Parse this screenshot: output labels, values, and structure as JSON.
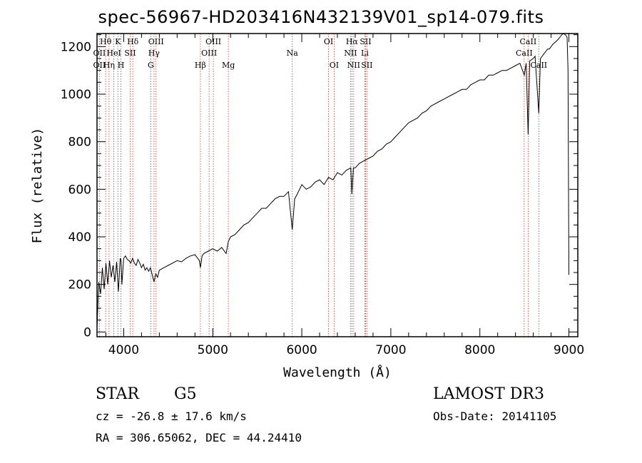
{
  "title": "spec-56967-HD203416N432139V01_sp14-079.fits",
  "chart_data": {
    "type": "line",
    "xlabel": "Wavelength (Å)",
    "ylabel": "Flux (relative)",
    "xlim": [
      3700,
      9100
    ],
    "ylim": [
      -20,
      1255
    ],
    "x_ticks": [
      4000,
      5000,
      6000,
      7000,
      8000,
      9000
    ],
    "y_ticks": [
      0,
      200,
      400,
      600,
      800,
      1000,
      1200
    ],
    "series": [
      {
        "name": "spectrum",
        "x": [
          3700,
          3720,
          3740,
          3760,
          3780,
          3800,
          3820,
          3840,
          3860,
          3880,
          3900,
          3920,
          3940,
          3960,
          3970,
          3980,
          4000,
          4020,
          4040,
          4060,
          4080,
          4100,
          4120,
          4140,
          4160,
          4180,
          4200,
          4220,
          4240,
          4260,
          4280,
          4300,
          4320,
          4340,
          4360,
          4380,
          4400,
          4450,
          4500,
          4550,
          4600,
          4650,
          4700,
          4750,
          4800,
          4850,
          4861,
          4880,
          4900,
          4950,
          5000,
          5050,
          5100,
          5150,
          5175,
          5200,
          5250,
          5300,
          5350,
          5400,
          5450,
          5500,
          5550,
          5600,
          5650,
          5700,
          5750,
          5800,
          5850,
          5893,
          5920,
          5950,
          6000,
          6050,
          6100,
          6150,
          6200,
          6250,
          6300,
          6350,
          6400,
          6450,
          6500,
          6550,
          6563,
          6580,
          6600,
          6650,
          6700,
          6750,
          6800,
          6850,
          6900,
          6950,
          7000,
          7050,
          7100,
          7150,
          7200,
          7250,
          7300,
          7350,
          7400,
          7450,
          7500,
          7550,
          7600,
          7650,
          7700,
          7750,
          7800,
          7850,
          7900,
          7950,
          8000,
          8050,
          8100,
          8150,
          8200,
          8250,
          8300,
          8350,
          8400,
          8450,
          8498,
          8520,
          8542,
          8560,
          8600,
          8620,
          8662,
          8680,
          8700,
          8720,
          8740,
          8760,
          8780,
          8800,
          8820,
          8850,
          8880,
          8900,
          8920,
          8940,
          8960,
          8980,
          8990,
          9000
        ],
        "values": [
          20,
          210,
          160,
          270,
          180,
          290,
          200,
          300,
          230,
          280,
          210,
          295,
          170,
          310,
          300,
          200,
          310,
          320,
          305,
          300,
          290,
          310,
          290,
          280,
          305,
          290,
          270,
          285,
          260,
          270,
          255,
          270,
          240,
          210,
          245,
          230,
          260,
          270,
          280,
          290,
          300,
          295,
          310,
          320,
          325,
          300,
          270,
          320,
          330,
          340,
          350,
          340,
          355,
          330,
          380,
          400,
          410,
          430,
          450,
          460,
          480,
          500,
          520,
          520,
          540,
          560,
          570,
          570,
          590,
          430,
          560,
          580,
          620,
          600,
          610,
          630,
          640,
          620,
          650,
          640,
          670,
          660,
          680,
          690,
          580,
          690,
          690,
          710,
          720,
          730,
          740,
          760,
          770,
          790,
          800,
          820,
          840,
          860,
          880,
          890,
          900,
          920,
          930,
          950,
          960,
          970,
          980,
          990,
          1000,
          1010,
          1020,
          1020,
          1040,
          1050,
          1060,
          1060,
          1080,
          1080,
          1090,
          1100,
          1100,
          1110,
          1120,
          1130,
          1080,
          1130,
          830,
          1140,
          1150,
          1160,
          920,
          1150,
          1160,
          1170,
          1180,
          1190,
          1190,
          1200,
          1210,
          1220,
          1230,
          1240,
          1250,
          1255,
          1250,
          1240,
          1100,
          240
        ]
      }
    ],
    "annotations": [
      {
        "label": "Hθ",
        "wavelength": 3797,
        "row": 0
      },
      {
        "label": "OII",
        "wavelength": 3727,
        "row": 1
      },
      {
        "label": "OII",
        "wavelength": 3727,
        "row": 2
      },
      {
        "label": "Hη",
        "wavelength": 3835,
        "row": 2
      },
      {
        "label": "K",
        "wavelength": 3934,
        "row": 0
      },
      {
        "label": "HeI",
        "wavelength": 3889,
        "row": 1
      },
      {
        "label": "H",
        "wavelength": 3969,
        "row": 2
      },
      {
        "label": "SII",
        "wavelength": 4072,
        "row": 1
      },
      {
        "label": "Hδ",
        "wavelength": 4102,
        "row": 0
      },
      {
        "label": "OIII",
        "wavelength": 4363,
        "row": 0
      },
      {
        "label": "Hγ",
        "wavelength": 4340,
        "row": 1
      },
      {
        "label": "G",
        "wavelength": 4304,
        "row": 2
      },
      {
        "label": "Hβ",
        "wavelength": 4861,
        "row": 2
      },
      {
        "label": "OIII",
        "wavelength": 5007,
        "row": 0
      },
      {
        "label": "OIII",
        "wavelength": 4959,
        "row": 1
      },
      {
        "label": "Mg",
        "wavelength": 5175,
        "row": 2
      },
      {
        "label": "Na",
        "wavelength": 5893,
        "row": 1
      },
      {
        "label": "OI",
        "wavelength": 6300,
        "row": 0
      },
      {
        "label": "OI",
        "wavelength": 6363,
        "row": 2
      },
      {
        "label": "Hα",
        "wavelength": 6563,
        "row": 0
      },
      {
        "label": "SII",
        "wavelength": 6716,
        "row": 0
      },
      {
        "label": "NII",
        "wavelength": 6548,
        "row": 1
      },
      {
        "label": "Li",
        "wavelength": 6708,
        "row": 1
      },
      {
        "label": "NII",
        "wavelength": 6583,
        "row": 2
      },
      {
        "label": "SII",
        "wavelength": 6731,
        "row": 2
      },
      {
        "label": "CaII",
        "wavelength": 8542,
        "row": 0
      },
      {
        "label": "CaII",
        "wavelength": 8498,
        "row": 1
      },
      {
        "label": "CaII",
        "wavelength": 8662,
        "row": 2
      }
    ],
    "line_markers": [
      3727,
      3797,
      3835,
      3889,
      3934,
      3969,
      4072,
      4102,
      4304,
      4340,
      4363,
      4861,
      4959,
      5007,
      5175,
      5893,
      6300,
      6363,
      6548,
      6563,
      6583,
      6708,
      6716,
      6731,
      8498,
      8542,
      8662
    ]
  },
  "info": {
    "object_class": "STAR",
    "subclass": "G5",
    "survey": "LAMOST DR3",
    "cz": "cz = -26.8 ± 17.6 km/s",
    "obs_date": "Obs-Date: 20141105",
    "radec": "RA = 306.65062, DEC =  44.24410"
  },
  "colors": {
    "marker": "#c0392b",
    "line": "#000000"
  }
}
